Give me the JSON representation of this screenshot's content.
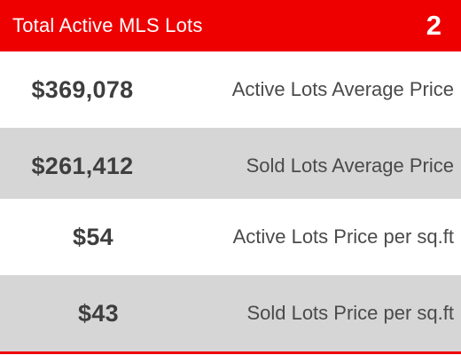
{
  "colors": {
    "header_bg": "#ee0000",
    "header_text": "#ffffff",
    "row_alt_bg": "#d6d6d6",
    "value_text": "#3e3e3e",
    "label_text": "#4a4a4a"
  },
  "header": {
    "title": "Total Active MLS Lots",
    "count": "2"
  },
  "stats": [
    {
      "value": "$369,078",
      "label": "Active Lots Average Price"
    },
    {
      "value": "$261,412",
      "label": "Sold Lots Average Price"
    },
    {
      "value": "$54",
      "label": "Active Lots Price per sq.ft"
    },
    {
      "value": "$43",
      "label": "Sold Lots Price per sq.ft"
    }
  ]
}
